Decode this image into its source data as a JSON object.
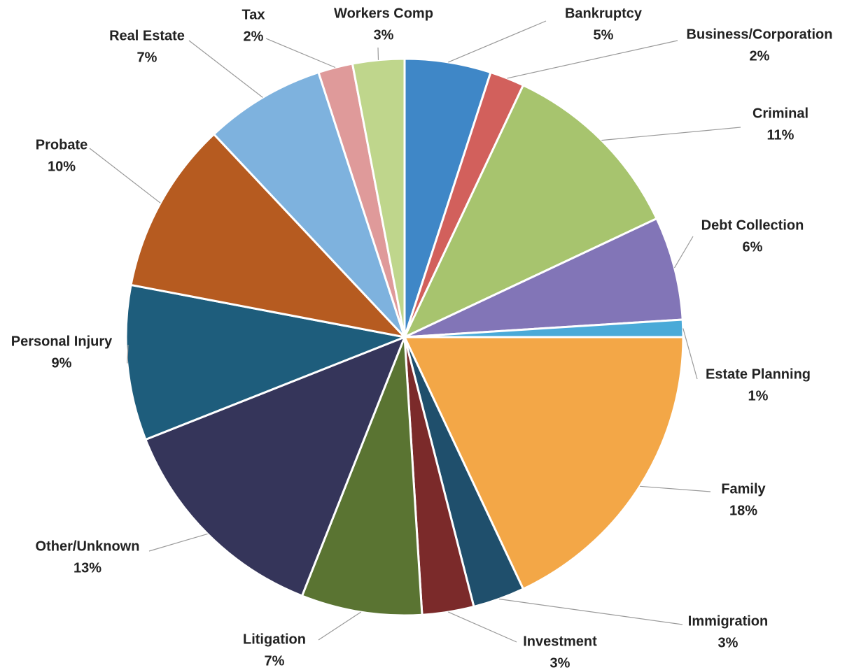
{
  "chart_data": {
    "type": "pie",
    "slices": [
      {
        "label": "Bankruptcy",
        "pct_label": "5%",
        "value": 5,
        "color": "#3f87c7"
      },
      {
        "label": "Business/Corporation",
        "pct_label": "2%",
        "value": 2,
        "color": "#d2605c"
      },
      {
        "label": "Criminal",
        "pct_label": "11%",
        "value": 11,
        "color": "#a7c46e"
      },
      {
        "label": "Debt Collection",
        "pct_label": "6%",
        "value": 6,
        "color": "#8275b7"
      },
      {
        "label": "Estate Planning",
        "pct_label": "1%",
        "value": 1,
        "color": "#4aaad8"
      },
      {
        "label": "Family",
        "pct_label": "18%",
        "value": 18,
        "color": "#f3a747"
      },
      {
        "label": "Immigration",
        "pct_label": "3%",
        "value": 3,
        "color": "#1f4f6c"
      },
      {
        "label": "Investment",
        "pct_label": "3%",
        "value": 3,
        "color": "#7b2a2a"
      },
      {
        "label": "Litigation",
        "pct_label": "7%",
        "value": 7,
        "color": "#5a7432"
      },
      {
        "label": "Other/Unknown",
        "pct_label": "13%",
        "value": 13,
        "color": "#35355a"
      },
      {
        "label": "Personal Injury",
        "pct_label": "9%",
        "value": 9,
        "color": "#1e5d7c"
      },
      {
        "label": "Probate",
        "pct_label": "10%",
        "value": 10,
        "color": "#b65b20"
      },
      {
        "label": "Real Estate",
        "pct_label": "7%",
        "value": 7,
        "color": "#7eb2de"
      },
      {
        "label": "Tax",
        "pct_label": "2%",
        "value": 2,
        "color": "#df9a9a"
      },
      {
        "label": "Workers Comp",
        "pct_label": "3%",
        "value": 3,
        "color": "#bfd68c"
      }
    ]
  }
}
